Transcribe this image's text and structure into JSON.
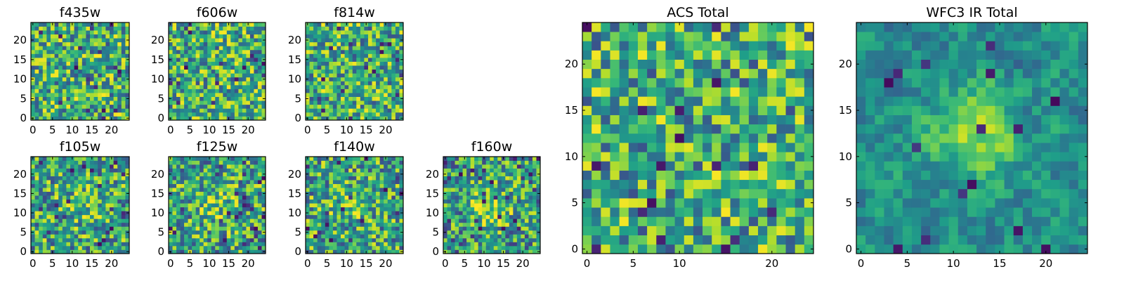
{
  "chart_data": [
    {
      "type": "heatmap",
      "title": "f435w",
      "x_ticks": [
        "0",
        "5",
        "10",
        "15",
        "20"
      ],
      "y_ticks": [
        "0",
        "5",
        "10",
        "15",
        "20"
      ],
      "xlim": [
        -0.5,
        24.5
      ],
      "ylim": [
        -0.5,
        24.5
      ],
      "colormap": "viridis",
      "grid": false,
      "value_range": [
        0,
        1
      ],
      "pattern": "uniform noise"
    },
    {
      "type": "heatmap",
      "title": "f606w",
      "x_ticks": [
        "0",
        "5",
        "10",
        "15",
        "20"
      ],
      "y_ticks": [
        "0",
        "5",
        "10",
        "15",
        "20"
      ],
      "xlim": [
        -0.5,
        24.5
      ],
      "ylim": [
        -0.5,
        24.5
      ],
      "colormap": "viridis",
      "grid": false,
      "value_range": [
        0,
        1
      ],
      "pattern": "uniform noise"
    },
    {
      "type": "heatmap",
      "title": "f814w",
      "x_ticks": [
        "0",
        "5",
        "10",
        "15",
        "20"
      ],
      "y_ticks": [
        "0",
        "5",
        "10",
        "15",
        "20"
      ],
      "xlim": [
        -0.5,
        24.5
      ],
      "ylim": [
        -0.5,
        24.5
      ],
      "colormap": "viridis",
      "grid": false,
      "value_range": [
        0,
        1
      ],
      "pattern": "uniform noise"
    },
    {
      "type": "heatmap",
      "title": "f105w",
      "x_ticks": [
        "0",
        "5",
        "10",
        "15",
        "20"
      ],
      "y_ticks": [
        "0",
        "5",
        "10",
        "15",
        "20"
      ],
      "xlim": [
        -0.5,
        24.5
      ],
      "ylim": [
        -0.5,
        24.5
      ],
      "colormap": "viridis",
      "grid": false,
      "value_range": [
        0,
        1
      ],
      "pattern": "noise with faint central source"
    },
    {
      "type": "heatmap",
      "title": "f125w",
      "x_ticks": [
        "0",
        "5",
        "10",
        "15",
        "20"
      ],
      "y_ticks": [
        "0",
        "5",
        "10",
        "15",
        "20"
      ],
      "xlim": [
        -0.5,
        24.5
      ],
      "ylim": [
        -0.5,
        24.5
      ],
      "colormap": "viridis",
      "grid": false,
      "value_range": [
        0,
        1
      ],
      "pattern": "noise with faint central source"
    },
    {
      "type": "heatmap",
      "title": "f140w",
      "x_ticks": [
        "0",
        "5",
        "10",
        "15",
        "20"
      ],
      "y_ticks": [
        "0",
        "5",
        "10",
        "15",
        "20"
      ],
      "xlim": [
        -0.5,
        24.5
      ],
      "ylim": [
        -0.5,
        24.5
      ],
      "colormap": "viridis",
      "grid": false,
      "value_range": [
        0,
        1
      ],
      "pattern": "noise with faint central source"
    },
    {
      "type": "heatmap",
      "title": "f160w",
      "x_ticks": [
        "0",
        "5",
        "10",
        "15",
        "20"
      ],
      "y_ticks": [
        "0",
        "5",
        "10",
        "15",
        "20"
      ],
      "xlim": [
        -0.5,
        24.5
      ],
      "ylim": [
        -0.5,
        24.5
      ],
      "colormap": "viridis",
      "grid": false,
      "value_range": [
        0,
        1
      ],
      "pattern": "noise with central source near (11, 12)"
    },
    {
      "type": "heatmap",
      "title": "ACS Total",
      "x_ticks": [
        "0",
        "5",
        "10",
        "20"
      ],
      "y_ticks": [
        "0",
        "5",
        "10",
        "15",
        "20"
      ],
      "xlim": [
        -0.5,
        24.5
      ],
      "ylim": [
        -0.5,
        24.5
      ],
      "colormap": "viridis",
      "grid": false,
      "value_range": [
        0,
        1
      ],
      "pattern": "uniform noise"
    },
    {
      "type": "heatmap",
      "title": "WFC3 IR Total",
      "x_ticks": [
        "0",
        "5",
        "10",
        "15",
        "20"
      ],
      "y_ticks": [
        "0",
        "5",
        "10",
        "15",
        "20"
      ],
      "xlim": [
        -0.5,
        24.5
      ],
      "ylim": [
        -0.5,
        24.5
      ],
      "colormap": "viridis",
      "grid": false,
      "value_range": [
        0,
        1
      ],
      "pattern": "smooth noise with bright central source near (12, 12)"
    }
  ]
}
